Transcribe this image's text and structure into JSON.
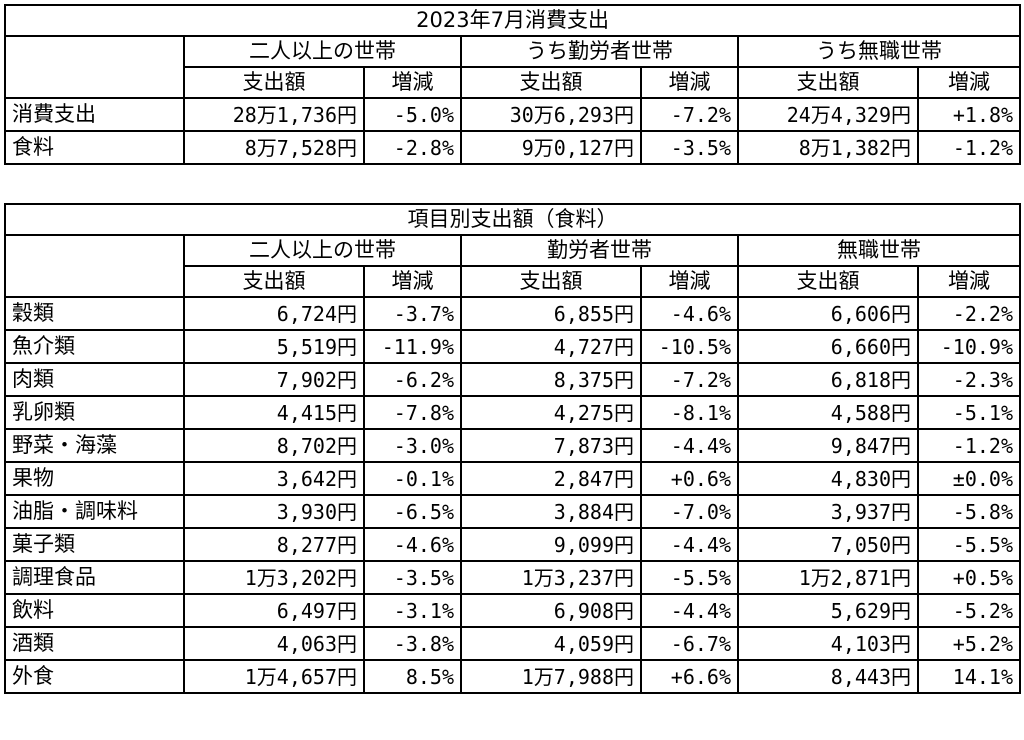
{
  "table1": {
    "title": "2023年7月消費支出",
    "groups": [
      "二人以上の世帯",
      "うち勤労者世帯",
      "うち無職世帯"
    ],
    "sub_headers": [
      "支出額",
      "増減",
      "支出額",
      "増減",
      "支出額",
      "増減"
    ],
    "rows": [
      {
        "label": "消費支出",
        "cells": [
          "28万1,736円",
          "-5.0%",
          "30万6,293円",
          "-7.2%",
          "24万4,329円",
          "+1.8%"
        ]
      },
      {
        "label": "食料",
        "cells": [
          "8万7,528円",
          "-2.8%",
          "9万0,127円",
          "-3.5%",
          "8万1,382円",
          "-1.2%"
        ]
      }
    ]
  },
  "table2": {
    "title": "項目別支出額（食料）",
    "groups": [
      "二人以上の世帯",
      "勤労者世帯",
      "無職世帯"
    ],
    "sub_headers": [
      "支出額",
      "増減",
      "支出額",
      "増減",
      "支出額",
      "増減"
    ],
    "rows": [
      {
        "label": "穀類",
        "cells": [
          "6,724円",
          "-3.7%",
          "6,855円",
          "-4.6%",
          "6,606円",
          "-2.2%"
        ]
      },
      {
        "label": "魚介類",
        "cells": [
          "5,519円",
          "-11.9%",
          "4,727円",
          "-10.5%",
          "6,660円",
          "-10.9%"
        ]
      },
      {
        "label": "肉類",
        "cells": [
          "7,902円",
          "-6.2%",
          "8,375円",
          "-7.2%",
          "6,818円",
          "-2.3%"
        ]
      },
      {
        "label": "乳卵類",
        "cells": [
          "4,415円",
          "-7.8%",
          "4,275円",
          "-8.1%",
          "4,588円",
          "-5.1%"
        ]
      },
      {
        "label": "野菜・海藻",
        "cells": [
          "8,702円",
          "-3.0%",
          "7,873円",
          "-4.4%",
          "9,847円",
          "-1.2%"
        ]
      },
      {
        "label": "果物",
        "cells": [
          "3,642円",
          "-0.1%",
          "2,847円",
          "+0.6%",
          "4,830円",
          "±0.0%"
        ]
      },
      {
        "label": "油脂・調味料",
        "cells": [
          "3,930円",
          "-6.5%",
          "3,884円",
          "-7.0%",
          "3,937円",
          "-5.8%"
        ]
      },
      {
        "label": "菓子類",
        "cells": [
          "8,277円",
          "-4.6%",
          "9,099円",
          "-4.4%",
          "7,050円",
          "-5.5%"
        ]
      },
      {
        "label": "調理食品",
        "cells": [
          "1万3,202円",
          "-3.5%",
          "1万3,237円",
          "-5.5%",
          "1万2,871円",
          "+0.5%"
        ]
      },
      {
        "label": "飲料",
        "cells": [
          "6,497円",
          "-3.1%",
          "6,908円",
          "-4.4%",
          "5,629円",
          "-5.2%"
        ]
      },
      {
        "label": "酒類",
        "cells": [
          "4,063円",
          "-3.8%",
          "4,059円",
          "-6.7%",
          "4,103円",
          "+5.2%"
        ]
      },
      {
        "label": "外食",
        "cells": [
          "1万4,657円",
          "8.5%",
          "1万7,988円",
          "+6.6%",
          "8,443円",
          "14.1%"
        ]
      }
    ]
  }
}
